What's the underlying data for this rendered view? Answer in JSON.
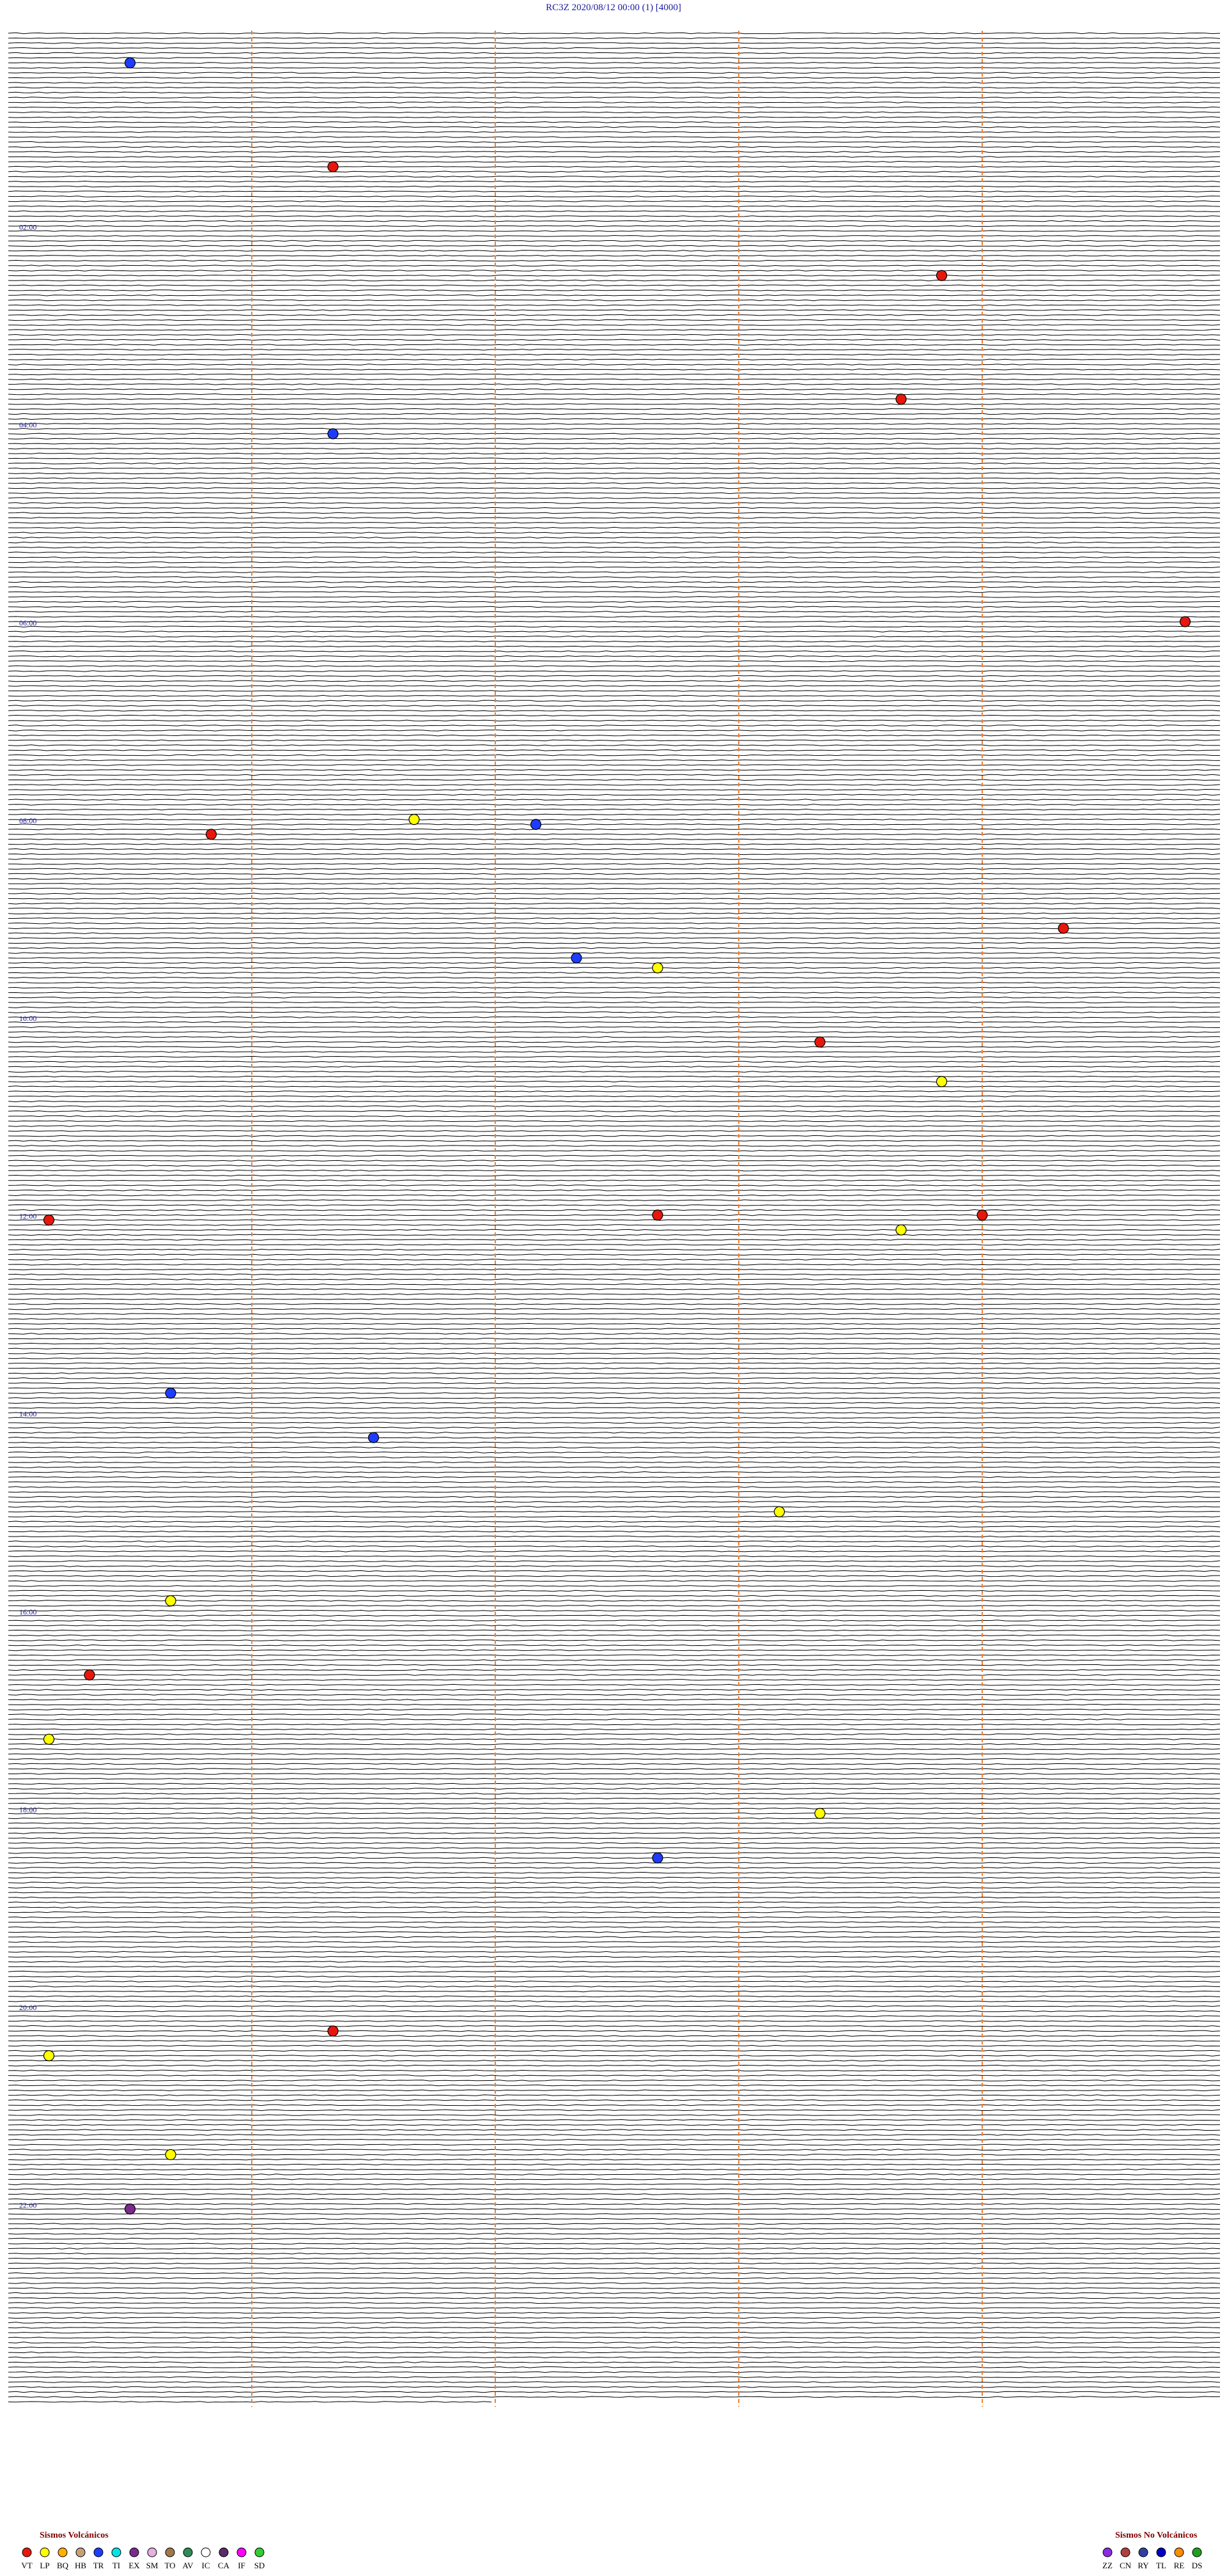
{
  "chart_data": {
    "type": "helicorder",
    "title": "RC3Z    2020/08/12 00:00     (1)     [4000]",
    "hour_labels": [
      "02:00",
      "04:00",
      "06:00",
      "08:00",
      "10:00",
      "12:00",
      "14:00",
      "16:00",
      "18:00",
      "20:00",
      "22:00"
    ],
    "legend_volcanic_title": "Sismos Volcánicos",
    "legend_volcanic": [
      {
        "code": "VT",
        "color": "#e8170c"
      },
      {
        "code": "LP",
        "color": "#ffff00"
      },
      {
        "code": "BQ",
        "color": "#ffb000"
      },
      {
        "code": "HB",
        "color": "#c8a078"
      },
      {
        "code": "TR",
        "color": "#1e3cff"
      },
      {
        "code": "TI",
        "color": "#00e5e5"
      },
      {
        "code": "EX",
        "color": "#7a2b8c"
      },
      {
        "code": "SM",
        "color": "#e6b0e0"
      },
      {
        "code": "TO",
        "color": "#a0784b"
      },
      {
        "code": "AV",
        "color": "#2e8b57"
      },
      {
        "code": "IC",
        "color": "#ffffff"
      },
      {
        "code": "CA",
        "color": "#5a2a6a"
      },
      {
        "code": "IF",
        "color": "#ff00ff"
      },
      {
        "code": "SD",
        "color": "#33cc33"
      }
    ],
    "legend_nonvolcanic_title": "Sismos No Volcánicos",
    "legend_nonvolcanic": [
      {
        "code": "ZZ",
        "color": "#8a2be2"
      },
      {
        "code": "CN",
        "color": "#b04040"
      },
      {
        "code": "RY",
        "color": "#3040a0"
      },
      {
        "code": "TL",
        "color": "#0000c0"
      },
      {
        "code": "RE",
        "color": "#ff8c00"
      },
      {
        "code": "DS",
        "color": "#20a020"
      }
    ],
    "events": [
      {
        "type": "TR",
        "minute": 18.3
      },
      {
        "type": "VT",
        "minute": 81.8
      },
      {
        "type": "VT",
        "minute": 149.3
      },
      {
        "type": "VT",
        "minute": 224.2
      },
      {
        "type": "TR",
        "minute": 243.8
      },
      {
        "type": "VT",
        "minute": 359.9
      },
      {
        "type": "LP",
        "minute": 478.0
      },
      {
        "type": "TR",
        "minute": 481.3
      },
      {
        "type": "VT",
        "minute": 486.5
      },
      {
        "type": "VT",
        "minute": 545.6
      },
      {
        "type": "TR",
        "minute": 562.4
      },
      {
        "type": "LP",
        "minute": 568.6
      },
      {
        "type": "VT",
        "minute": 614.0
      },
      {
        "type": "LP",
        "minute": 638.3
      },
      {
        "type": "VT",
        "minute": 718.6
      },
      {
        "type": "VT",
        "minute": 719.4
      },
      {
        "type": "VT",
        "minute": 720.1
      },
      {
        "type": "LP",
        "minute": 728.2
      },
      {
        "type": "TR",
        "minute": 825.4
      },
      {
        "type": "TR",
        "minute": 852.9
      },
      {
        "type": "LP",
        "minute": 898.9
      },
      {
        "type": "LP",
        "minute": 951.4
      },
      {
        "type": "VT",
        "minute": 996.2
      },
      {
        "type": "LP",
        "minute": 1035.1
      },
      {
        "type": "LP",
        "minute": 1082.0
      },
      {
        "type": "TR",
        "minute": 1108.6
      },
      {
        "type": "VT",
        "minute": 1212.8
      },
      {
        "type": "LP",
        "minute": 1227.1
      },
      {
        "type": "LP",
        "minute": 1287.4
      },
      {
        "type": "EX",
        "minute": 1320.3
      }
    ]
  }
}
